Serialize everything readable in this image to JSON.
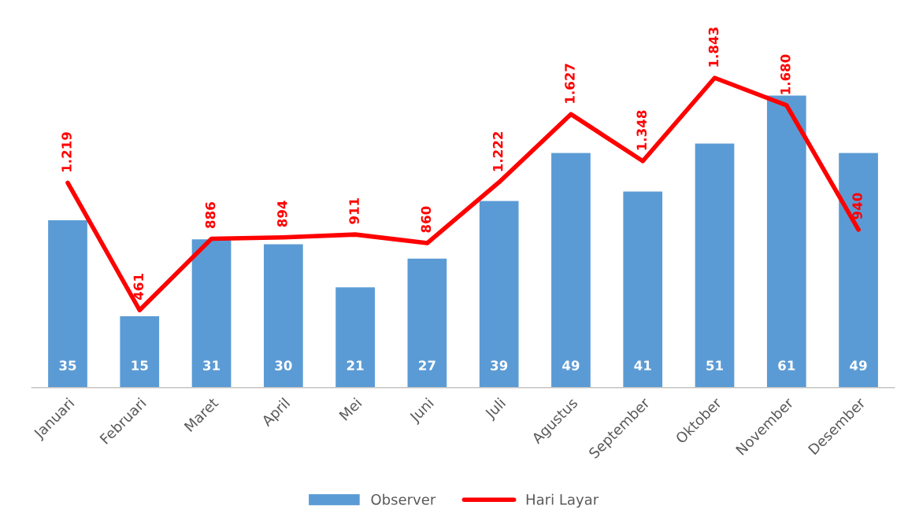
{
  "chart_data": {
    "type": "bar",
    "categories": [
      "Januari",
      "Februari",
      "Maret",
      "April",
      "Mei",
      "Juni",
      "Juli",
      "Agustus",
      "September",
      "Oktober",
      "November",
      "Desember"
    ],
    "series": [
      {
        "name": "Observer",
        "color": "#5b9bd5",
        "values": [
          35,
          15,
          31,
          30,
          21,
          27,
          39,
          49,
          41,
          51,
          61,
          49
        ],
        "value_labels": [
          "35",
          "15",
          "31",
          "30",
          "21",
          "27",
          "39",
          "49",
          "41",
          "51",
          "61",
          "49"
        ]
      },
      {
        "name": "Hari Layar",
        "type": "line",
        "axis": "y2",
        "color": "#ff0000",
        "values": [
          1219,
          461,
          886,
          894,
          911,
          860,
          1222,
          1627,
          1348,
          1843,
          1680,
          940
        ],
        "value_labels": [
          "1.219",
          "461",
          "886",
          "894",
          "911",
          "860",
          "1.222",
          "1.627",
          "1.348",
          "1.843",
          "1.680",
          "940"
        ]
      }
    ],
    "legend": "bottom",
    "grid": false,
    "marker": "none",
    "line_style": "solid"
  }
}
